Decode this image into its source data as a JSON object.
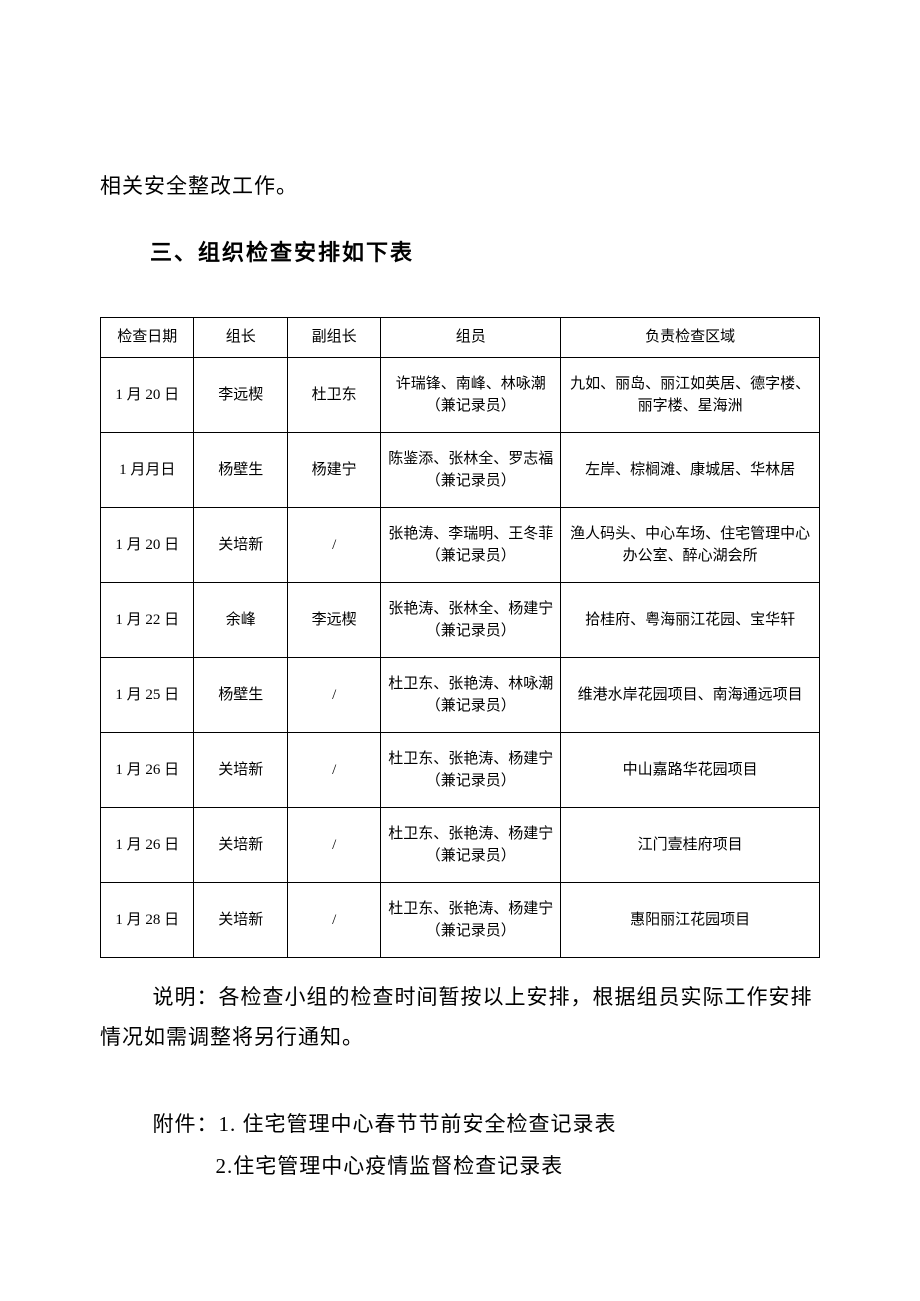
{
  "intro_text": "相关安全整改工作。",
  "section_heading": "三、组织检查安排如下表",
  "table": {
    "headers": [
      "检查日期",
      "组长",
      "副组长",
      "组员",
      "负责检查区域"
    ],
    "rows": [
      [
        "1 月 20 日",
        "李远楔",
        "杜卫东",
        "许瑞锋、南峰、林咏潮（兼记录员）",
        "九如、丽岛、丽江如英居、德字楼、丽字楼、星海洲"
      ],
      [
        "1 月月日",
        "杨壁生",
        "杨建宁",
        "陈鉴添、张林全、罗志福（兼记录员）",
        "左岸、棕榈滩、康城居、华林居"
      ],
      [
        "1 月 20 日",
        "关培新",
        "/",
        "张艳涛、李瑞明、王冬菲（兼记录员）",
        "渔人码头、中心车场、住宅管理中心办公室、醉心湖会所"
      ],
      [
        "1 月 22 日",
        "余峰",
        "李远楔",
        "张艳涛、张林全、杨建宁（兼记录员）",
        "拾桂府、粤海丽江花园、宝华轩"
      ],
      [
        "1 月 25 日",
        "杨壁生",
        "/",
        "杜卫东、张艳涛、林咏潮（兼记录员）",
        "维港水岸花园项目、南海通远项目"
      ],
      [
        "1 月 26 日",
        "关培新",
        "/",
        "杜卫东、张艳涛、杨建宁（兼记录员）",
        "中山嘉路华花园项目"
      ],
      [
        "1 月 26 日",
        "关培新",
        "/",
        "杜卫东、张艳涛、杨建宁（兼记录员）",
        "江门壹桂府项目"
      ],
      [
        "1 月 28 日",
        "关培新",
        "/",
        "杜卫东、张艳涛、杨建宁（兼记录员）",
        "惠阳丽江花园项目"
      ]
    ]
  },
  "notes_text": "说明：各检查小组的检查时间暂按以上安排，根据组员实际工作安排情况如需调整将另行通知。",
  "attachments_label": "附件：",
  "attachment1": "1. 住宅管理中心春节节前安全检查记录表",
  "attachment2": "2.住宅管理中心疫情监督检查记录表"
}
